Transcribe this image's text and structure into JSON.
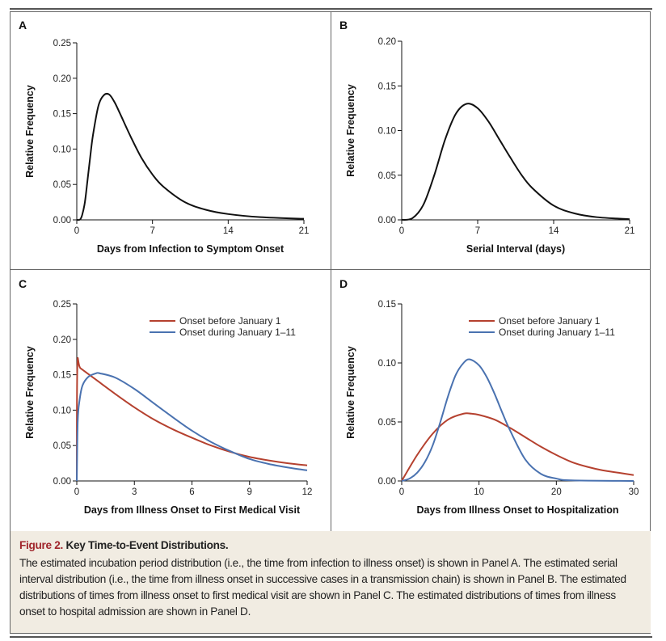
{
  "chart_data": [
    {
      "panel": "A",
      "type": "line",
      "xlabel": "Days from Infection to Symptom Onset",
      "ylabel": "Relative Frequency",
      "xlim": [
        0,
        21
      ],
      "ylim": [
        0,
        0.25
      ],
      "xticks": [
        "0",
        "7",
        "14",
        "21"
      ],
      "yticks": [
        "0.00",
        "0.05",
        "0.10",
        "0.15",
        "0.20",
        "0.25"
      ],
      "grid": false,
      "series": [
        {
          "color": "#111111",
          "x": [
            0,
            0.3,
            0.5,
            0.75,
            1,
            1.25,
            1.5,
            2,
            2.5,
            3,
            3.5,
            4,
            5,
            6,
            7,
            8,
            10,
            12,
            14,
            17,
            21
          ],
          "y": [
            0,
            0.0005,
            0.007,
            0.025,
            0.057,
            0.09,
            0.12,
            0.161,
            0.176,
            0.177,
            0.166,
            0.15,
            0.117,
            0.087,
            0.064,
            0.047,
            0.025,
            0.014,
            0.0082,
            0.0038,
            0.0015
          ]
        }
      ]
    },
    {
      "panel": "B",
      "type": "line",
      "xlabel": "Serial Interval (days)",
      "ylabel": "Relative Frequency",
      "xlim": [
        0,
        21
      ],
      "ylim": [
        0,
        0.2
      ],
      "xticks": [
        "0",
        "7",
        "14",
        "21"
      ],
      "yticks": [
        "0.00",
        "0.05",
        "0.10",
        "0.15",
        "0.20"
      ],
      "grid": false,
      "series": [
        {
          "color": "#111111",
          "x": [
            0,
            1,
            2,
            3,
            4,
            5,
            6,
            7,
            8,
            9,
            10,
            11,
            12,
            14,
            16,
            18,
            21
          ],
          "y": [
            0,
            0.002,
            0.017,
            0.05,
            0.09,
            0.119,
            0.13,
            0.125,
            0.11,
            0.09,
            0.07,
            0.051,
            0.036,
            0.016,
            0.007,
            0.003,
            0.0007
          ]
        }
      ]
    },
    {
      "panel": "C",
      "type": "line",
      "xlabel": "Days from Illness Onset to First Medical Visit",
      "ylabel": "Relative Frequency",
      "xlim": [
        0,
        12
      ],
      "ylim": [
        0,
        0.25
      ],
      "xticks": [
        "0",
        "3",
        "6",
        "9",
        "12"
      ],
      "yticks": [
        "0.00",
        "0.05",
        "0.10",
        "0.15",
        "0.20",
        "0.25"
      ],
      "grid": false,
      "legend": "top-right",
      "series": [
        {
          "name": "Onset before January 1",
          "color": "#b5412f",
          "x": [
            0,
            0.03,
            0.2,
            1,
            2,
            3,
            4,
            5,
            6,
            7,
            8,
            9,
            10,
            11,
            12
          ],
          "y": [
            0,
            0.162,
            0.159,
            0.143,
            0.123,
            0.104,
            0.087,
            0.073,
            0.061,
            0.05,
            0.041,
            0.034,
            0.029,
            0.025,
            0.022
          ]
        },
        {
          "name": "Onset during January 1–11",
          "color": "#4a72b0",
          "x": [
            0,
            0.05,
            0.15,
            0.3,
            0.6,
            1,
            1.2,
            2,
            3,
            4,
            5,
            6,
            7,
            8,
            9,
            10,
            11,
            12
          ],
          "y": [
            0,
            0.085,
            0.115,
            0.135,
            0.147,
            0.152,
            0.152,
            0.146,
            0.13,
            0.11,
            0.09,
            0.071,
            0.055,
            0.042,
            0.031,
            0.024,
            0.019,
            0.015
          ]
        }
      ]
    },
    {
      "panel": "D",
      "type": "line",
      "xlabel": "Days from Illness Onset to Hospitalization",
      "ylabel": "Relative Frequency",
      "xlim": [
        0,
        30
      ],
      "ylim": [
        0,
        0.15
      ],
      "xticks": [
        "0",
        "10",
        "20",
        "30"
      ],
      "yticks": [
        "0.00",
        "0.05",
        "0.10",
        "0.15"
      ],
      "grid": false,
      "legend": "top-right",
      "series": [
        {
          "name": "Onset before January 1",
          "color": "#b5412f",
          "x": [
            0,
            2,
            4,
            6,
            8,
            9,
            10,
            12,
            14,
            16,
            18,
            20,
            22,
            24,
            26,
            28,
            30
          ],
          "y": [
            0,
            0.022,
            0.04,
            0.052,
            0.057,
            0.057,
            0.056,
            0.052,
            0.045,
            0.037,
            0.029,
            0.022,
            0.016,
            0.012,
            0.009,
            0.007,
            0.005
          ]
        },
        {
          "name": "Onset during January 1–11",
          "color": "#4a72b0",
          "x": [
            0,
            1,
            2,
            3,
            4,
            5,
            6,
            7,
            8,
            8.8,
            10,
            11,
            12,
            13,
            14,
            16,
            18,
            20,
            22,
            30
          ],
          "y": [
            0,
            0.002,
            0.007,
            0.016,
            0.03,
            0.05,
            0.072,
            0.09,
            0.1,
            0.103,
            0.098,
            0.088,
            0.074,
            0.058,
            0.043,
            0.018,
            0.006,
            0.002,
            0.0005,
            0
          ]
        }
      ]
    }
  ],
  "caption": {
    "figure_label": "Figure 2.",
    "title": "Key Time-to-Event Distributions.",
    "body": "The estimated incubation period distribution (i.e., the time from infection to illness onset) is shown in Panel A. The estimated serial interval distribution (i.e., the time from illness onset in successive cases in a transmission chain) is shown in Panel B. The estimated distributions of times from illness onset to first medical visit are shown in Panel C. The estimated distributions of times from illness onset to hospital admission are shown in Panel D."
  }
}
